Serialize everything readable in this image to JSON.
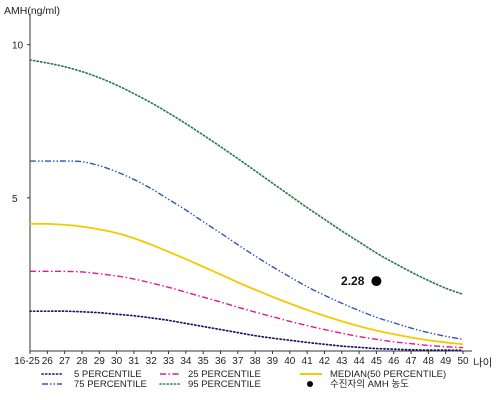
{
  "chart_data": {
    "type": "line",
    "ylabel": "AMH(ng/ml)",
    "xlabel": "나이",
    "ylim": [
      0,
      11
    ],
    "yticks": [
      "5",
      "10"
    ],
    "ytick_values": [
      5,
      10
    ],
    "categories": [
      "16-25",
      "26",
      "27",
      "28",
      "29",
      "30",
      "31",
      "32",
      "33",
      "34",
      "35",
      "36",
      "37",
      "38",
      "39",
      "40",
      "41",
      "42",
      "43",
      "44",
      "45",
      "46",
      "47",
      "48",
      "49",
      "50"
    ],
    "x_start": 25,
    "series": [
      {
        "name": "5 PERCENTILE",
        "color": "#14146e",
        "dash": "dotted",
        "values": [
          1.3,
          1.3,
          1.3,
          1.28,
          1.25,
          1.2,
          1.15,
          1.08,
          1.0,
          0.9,
          0.8,
          0.7,
          0.6,
          0.5,
          0.42,
          0.35,
          0.28,
          0.22,
          0.16,
          0.12,
          0.08,
          0.06,
          0.04,
          0.03,
          0.03,
          0.02
        ]
      },
      {
        "name": "25 PERCENTILE",
        "color": "#e0198c",
        "dash": "dash-dot",
        "values": [
          2.6,
          2.6,
          2.6,
          2.58,
          2.52,
          2.45,
          2.35,
          2.22,
          2.08,
          1.92,
          1.76,
          1.6,
          1.43,
          1.27,
          1.12,
          0.97,
          0.83,
          0.7,
          0.58,
          0.47,
          0.38,
          0.3,
          0.24,
          0.18,
          0.14,
          0.11
        ]
      },
      {
        "name": "MEDIAN(50 PERCENTILE)",
        "color": "#f5c800",
        "dash": "solid",
        "values": [
          4.15,
          4.15,
          4.12,
          4.06,
          3.97,
          3.85,
          3.68,
          3.47,
          3.24,
          3.0,
          2.75,
          2.5,
          2.24,
          2.0,
          1.77,
          1.55,
          1.34,
          1.15,
          0.97,
          0.81,
          0.67,
          0.55,
          0.44,
          0.35,
          0.28,
          0.22
        ]
      },
      {
        "name": "75 PERCENTILE",
        "color": "#3355bb",
        "dash": "dash-dot-dot",
        "values": [
          6.2,
          6.2,
          6.2,
          6.18,
          6.05,
          5.85,
          5.6,
          5.3,
          4.95,
          4.6,
          4.22,
          3.85,
          3.47,
          3.1,
          2.75,
          2.42,
          2.1,
          1.82,
          1.56,
          1.32,
          1.1,
          0.92,
          0.75,
          0.6,
          0.48,
          0.38
        ]
      },
      {
        "name": "95 PERCENTILE",
        "color": "#2e7d4a",
        "dash": "dotted",
        "values": [
          9.5,
          9.4,
          9.28,
          9.12,
          8.92,
          8.68,
          8.4,
          8.1,
          7.77,
          7.42,
          7.05,
          6.67,
          6.28,
          5.88,
          5.48,
          5.08,
          4.68,
          4.3,
          3.92,
          3.56,
          3.2,
          2.88,
          2.58,
          2.3,
          2.05,
          1.85
        ]
      }
    ],
    "marker": {
      "name": "수진자의 AMH 농도",
      "category": "45",
      "value": 2.28,
      "label": "2.28",
      "color": "#000000"
    },
    "legend": {
      "position": "bottom",
      "order": [
        "5 PERCENTILE",
        "25 PERCENTILE",
        "MEDIAN(50 PERCENTILE)",
        "75 PERCENTILE",
        "95 PERCENTILE",
        "수진자의 AMH 농도"
      ]
    },
    "grid": false
  }
}
